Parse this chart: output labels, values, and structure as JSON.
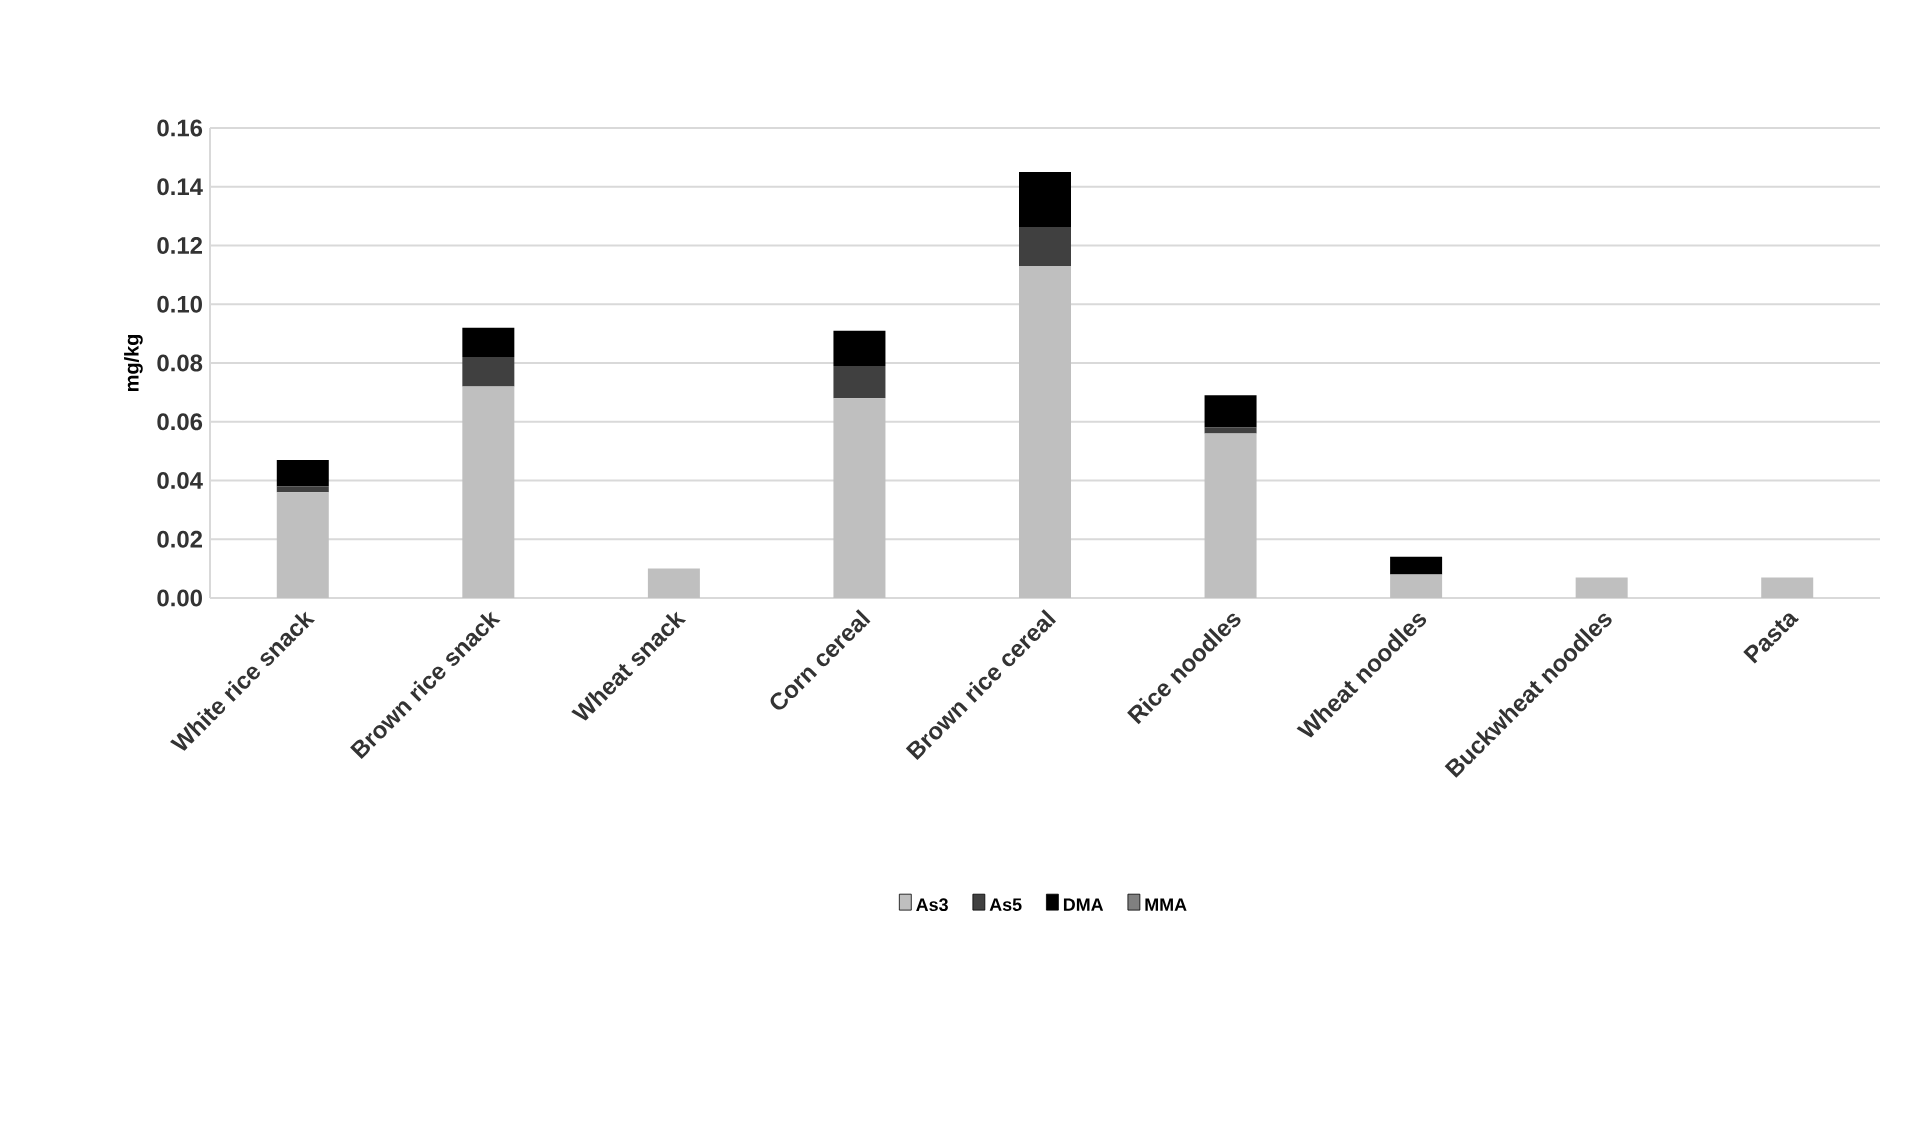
{
  "chart_data": {
    "type": "bar",
    "stacked": true,
    "ylabel": "mg/kg",
    "categories": [
      "White rice snack",
      "Brown rice snack",
      "Wheat snack",
      "Corn cereal",
      "Brown rice cereal",
      "Rice noodles",
      "Wheat noodles",
      "Buckwheat noodles",
      "Pasta"
    ],
    "series": [
      {
        "name": "As3",
        "color": "#bfbfbf",
        "values": [
          0.036,
          0.072,
          0.01,
          0.068,
          0.113,
          0.056,
          0.008,
          0.007,
          0.007
        ]
      },
      {
        "name": "As5",
        "color": "#404040",
        "values": [
          0.002,
          0.01,
          0,
          0.011,
          0.013,
          0.002,
          0,
          0,
          0
        ]
      },
      {
        "name": "DMA",
        "color": "#000000",
        "values": [
          0.009,
          0.01,
          0,
          0.012,
          0.019,
          0.011,
          0.006,
          0,
          0
        ]
      },
      {
        "name": "MMA",
        "color": "#808080",
        "values": [
          0,
          0,
          0,
          0,
          0,
          0,
          0,
          0,
          0
        ]
      }
    ],
    "ylim": [
      0,
      0.16
    ],
    "yticks": [
      {
        "value": 0,
        "label": "0.00"
      },
      {
        "value": 0.02,
        "label": "0.02"
      },
      {
        "value": 0.04,
        "label": "0.04"
      },
      {
        "value": 0.06,
        "label": "0.06"
      },
      {
        "value": 0.08,
        "label": "0.08"
      },
      {
        "value": 0.1,
        "label": "0.10"
      },
      {
        "value": 0.12,
        "label": "0.12"
      },
      {
        "value": 0.14,
        "label": "0.14"
      },
      {
        "value": 0.16,
        "label": "0.16"
      }
    ],
    "grid": "y",
    "legend": "bottom"
  }
}
